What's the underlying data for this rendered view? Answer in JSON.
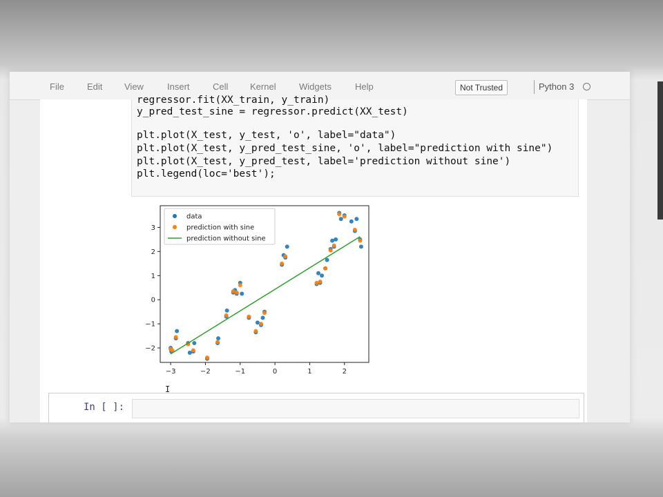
{
  "menu": {
    "items": [
      "File",
      "Edit",
      "View",
      "Insert",
      "Cell",
      "Kernel",
      "Widgets",
      "Help"
    ]
  },
  "trust_status": "Not Trusted",
  "kernel": {
    "name": "Python 3",
    "indicator_icon": "kernel-idle-circle-icon"
  },
  "code_cell": {
    "lines": [
      "regressor.fit(XX_train, y_train)",
      "y_pred_test_sine = regressor.predict(XX_test)",
      "",
      "plt.plot(X_test, y_test, 'o', label=\"data\")",
      "plt.plot(X_test, y_pred_test_sine, 'o', label=\"prediction with sine\")",
      "plt.plot(X_test, y_pred_test, label='prediction without sine')",
      "plt.legend(loc='best');"
    ]
  },
  "empty_cell": {
    "prompt": "In [ ]:",
    "cursor": "I"
  },
  "chart_data": {
    "type": "scatter",
    "xlim": [
      -3.3,
      2.7
    ],
    "ylim": [
      -2.6,
      3.9
    ],
    "xticks": [
      "−3",
      "−2",
      "−1",
      "0",
      "1",
      "2"
    ],
    "yticks": [
      "−2",
      "−1",
      "0",
      "1",
      "2",
      "3"
    ],
    "legend_position": "top-left",
    "grid": false,
    "series": [
      {
        "name": "data",
        "kind": "points",
        "color": "#1f77b4",
        "points": [
          [
            -3.0,
            -2.0
          ],
          [
            -2.98,
            -2.15
          ],
          [
            -2.85,
            -1.6
          ],
          [
            -2.82,
            -1.3
          ],
          [
            -2.5,
            -1.8
          ],
          [
            -2.45,
            -2.2
          ],
          [
            -2.35,
            -2.15
          ],
          [
            -2.32,
            -1.8
          ],
          [
            -1.95,
            -2.45
          ],
          [
            -1.65,
            -1.8
          ],
          [
            -1.63,
            -1.6
          ],
          [
            -1.4,
            -0.7
          ],
          [
            -1.38,
            -0.45
          ],
          [
            -1.2,
            0.3
          ],
          [
            -1.15,
            0.4
          ],
          [
            -1.1,
            0.25
          ],
          [
            -1.0,
            0.7
          ],
          [
            -0.95,
            0.25
          ],
          [
            -0.75,
            -0.75
          ],
          [
            -0.55,
            -1.35
          ],
          [
            -0.5,
            -0.95
          ],
          [
            -0.4,
            -1.05
          ],
          [
            -0.35,
            -0.75
          ],
          [
            -0.3,
            -0.5
          ],
          [
            0.2,
            1.45
          ],
          [
            0.25,
            1.85
          ],
          [
            0.3,
            1.75
          ],
          [
            0.35,
            2.2
          ],
          [
            1.2,
            0.65
          ],
          [
            1.25,
            1.1
          ],
          [
            1.3,
            0.7
          ],
          [
            1.35,
            1.0
          ],
          [
            1.45,
            1.3
          ],
          [
            1.5,
            1.65
          ],
          [
            1.6,
            2.1
          ],
          [
            1.65,
            2.45
          ],
          [
            1.7,
            2.2
          ],
          [
            1.75,
            2.5
          ],
          [
            1.85,
            3.6
          ],
          [
            1.9,
            3.35
          ],
          [
            2.0,
            3.5
          ],
          [
            2.2,
            3.25
          ],
          [
            2.3,
            2.85
          ],
          [
            2.35,
            3.35
          ],
          [
            2.45,
            2.5
          ],
          [
            2.48,
            2.2
          ]
        ]
      },
      {
        "name": "prediction with sine",
        "kind": "points",
        "color": "#ff7f0e",
        "points": [
          [
            -3.0,
            -2.05
          ],
          [
            -2.95,
            -2.1
          ],
          [
            -2.85,
            -1.55
          ],
          [
            -2.5,
            -1.85
          ],
          [
            -2.35,
            -2.1
          ],
          [
            -1.95,
            -2.4
          ],
          [
            -1.65,
            -1.75
          ],
          [
            -1.4,
            -0.65
          ],
          [
            -1.2,
            0.35
          ],
          [
            -1.1,
            0.3
          ],
          [
            -1.0,
            0.6
          ],
          [
            -0.75,
            -0.7
          ],
          [
            -0.55,
            -1.3
          ],
          [
            -0.4,
            -1.0
          ],
          [
            -0.3,
            -0.55
          ],
          [
            0.2,
            1.5
          ],
          [
            0.3,
            1.8
          ],
          [
            1.2,
            0.7
          ],
          [
            1.3,
            0.75
          ],
          [
            1.45,
            1.3
          ],
          [
            1.6,
            2.05
          ],
          [
            1.7,
            2.25
          ],
          [
            1.85,
            3.55
          ],
          [
            2.0,
            3.45
          ],
          [
            2.3,
            2.9
          ],
          [
            2.45,
            2.45
          ]
        ]
      },
      {
        "name": "prediction without sine",
        "kind": "line",
        "color": "#2ca02c",
        "points": [
          [
            -3.0,
            -2.25
          ],
          [
            2.45,
            2.62
          ]
        ]
      }
    ]
  }
}
